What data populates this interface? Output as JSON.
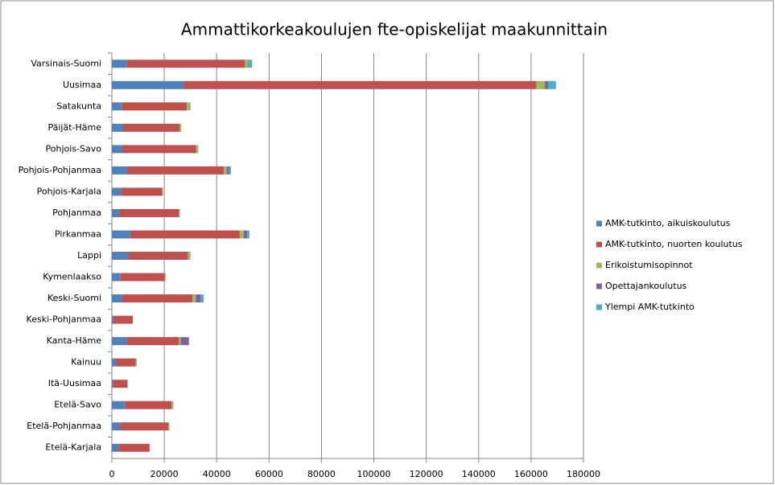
{
  "chart_data": {
    "type": "stacked-barh",
    "title": "Ammattikorkeakoulujen fte-opiskelijat maakunnittain",
    "categories": [
      "Varsinais-Suomi",
      "Uusimaa",
      "Satakunta",
      "Päijät-Häme",
      "Pohjois-Savo",
      "Pohjois-Pohjanmaa",
      "Pohjois-Karjala",
      "Pohjanmaa",
      "Pirkanmaa",
      "Lappi",
      "Kymenlaakso",
      "Keski-Suomi",
      "Keski-Pohjanmaa",
      "Kanta-Häme",
      "Kainuu",
      "Itä-Uusimaa",
      "Etelä-Savo",
      "Etelä-Pohjanmaa",
      "Etelä-Karjala"
    ],
    "series": [
      {
        "name": "AMK-tutkinto, aikuiskoulutus",
        "color": "#4f81bd",
        "values": [
          5800,
          27500,
          3800,
          4300,
          4000,
          6000,
          3500,
          2800,
          7000,
          6300,
          3300,
          4000,
          600,
          5800,
          1700,
          400,
          5000,
          3200,
          2500
        ]
      },
      {
        "name": "AMK-tutkinto, nuorten koulutus",
        "color": "#c0504d",
        "values": [
          45000,
          134500,
          24800,
          21500,
          28100,
          36800,
          15800,
          22800,
          41800,
          22700,
          16900,
          26800,
          7400,
          19700,
          7400,
          5600,
          17800,
          18400,
          11900
        ]
      },
      {
        "name": "Erikoistumisopinnot",
        "color": "#9bbb59",
        "values": [
          1200,
          3200,
          1200,
          700,
          700,
          1000,
          200,
          400,
          1500,
          700,
          300,
          1200,
          0,
          700,
          400,
          0,
          700,
          400,
          100
        ]
      },
      {
        "name": "Opettajankoulutus",
        "color": "#8064a2",
        "values": [
          300,
          1400,
          0,
          0,
          0,
          1000,
          0,
          0,
          1400,
          0,
          0,
          1800,
          0,
          3000,
          0,
          0,
          0,
          0,
          0
        ]
      },
      {
        "name": "Ylempi AMK-tutkinto",
        "color": "#4bacc6",
        "values": [
          1200,
          2900,
          200,
          0,
          200,
          700,
          0,
          0,
          800,
          300,
          0,
          1200,
          0,
          300,
          0,
          0,
          0,
          0,
          0
        ]
      }
    ],
    "xlim": [
      0,
      180000
    ],
    "xticks": [
      0,
      20000,
      40000,
      60000,
      80000,
      100000,
      120000,
      140000,
      160000,
      180000
    ],
    "grid": true,
    "legend": "right"
  }
}
